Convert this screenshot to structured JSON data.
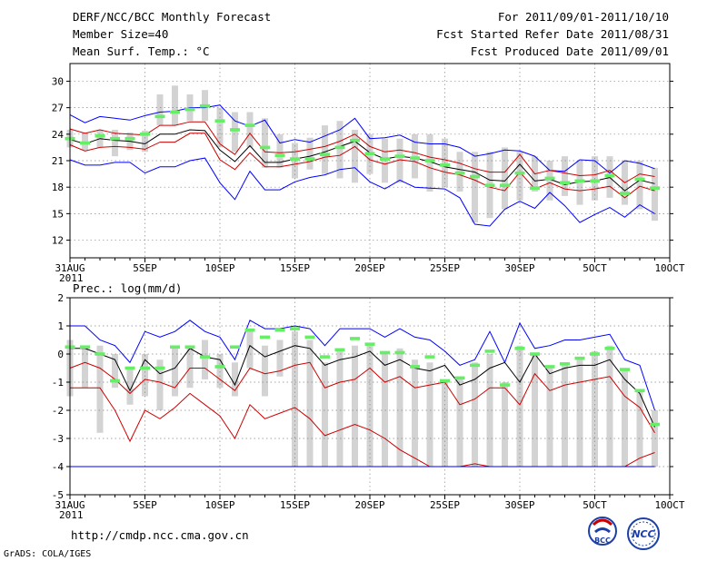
{
  "header": {
    "title": "DERF/NCC/BCC Monthly Forecast",
    "member_size": "Member Size=40",
    "for_period": "For 2011/09/01-2011/10/10",
    "fcst_started": "Fcst Started Refer Date 2011/08/31",
    "fcst_produced": "Fcst Produced Date 2011/09/01"
  },
  "footer": {
    "url": "http://cmdp.ncc.cma.gov.cn",
    "grads_credit": "GrADS: COLA/IGES",
    "logo_bcc_label": "BCC",
    "logo_ncc_label": "NCC"
  },
  "colors": {
    "envelope_max_min": "#0000ff",
    "spread": "#cc0000",
    "mean": "#000000",
    "boxes": "#d3d3d3",
    "member_marker": "#66ee66"
  },
  "chart_data": [
    {
      "type": "line",
      "title": "Mean Surf. Temp.: °C",
      "xlabel": "",
      "ylabel": "",
      "year_label": "2011",
      "x": [
        1,
        2,
        3,
        4,
        5,
        6,
        7,
        8,
        9,
        10,
        11,
        12,
        13,
        14,
        15,
        16,
        17,
        18,
        19,
        20,
        21,
        22,
        23,
        24,
        25,
        26,
        27,
        28,
        29,
        30,
        31,
        32,
        33,
        34,
        35,
        36,
        37,
        38,
        39,
        40
      ],
      "xtick_days": [
        1,
        6,
        11,
        16,
        21,
        26,
        31,
        36,
        41
      ],
      "xtick_labels": [
        "31AUG",
        "5SEP",
        "10SEP",
        "15SEP",
        "20SEP",
        "25SEP",
        "30SEP",
        "5OCT",
        "10OCT"
      ],
      "ylim": [
        10,
        32
      ],
      "yticks": [
        12,
        15,
        18,
        21,
        24,
        27,
        30
      ],
      "grid": true,
      "series": [
        {
          "name": "max",
          "values": [
            26.2,
            25.3,
            26.0,
            25.8,
            25.6,
            26.1,
            26.5,
            26.6,
            27.0,
            27.0,
            27.3,
            25.5,
            24.9,
            25.6,
            23.0,
            23.4,
            23.1,
            23.8,
            24.5,
            25.8,
            23.5,
            23.6,
            23.9,
            23.1,
            22.9,
            22.9,
            22.5,
            21.5,
            21.8,
            22.2,
            22.1,
            21.5,
            19.9,
            19.8,
            21.1,
            21.0,
            19.6,
            21.0,
            20.7,
            20.1
          ]
        },
        {
          "name": "upper",
          "values": [
            24.6,
            24.1,
            24.5,
            24.1,
            24.0,
            23.9,
            25.0,
            25.0,
            25.4,
            25.4,
            22.9,
            21.7,
            24.1,
            22.0,
            21.9,
            22.0,
            22.3,
            22.6,
            23.2,
            24.0,
            22.6,
            22.0,
            22.2,
            21.9,
            21.4,
            21.1,
            20.7,
            20.1,
            19.7,
            19.7,
            21.7,
            19.5,
            19.9,
            19.6,
            19.3,
            19.4,
            19.9,
            18.5,
            19.5,
            19.2
          ]
        },
        {
          "name": "mean",
          "values": [
            23.4,
            22.9,
            23.5,
            23.3,
            23.2,
            22.9,
            24.0,
            24.0,
            24.5,
            24.4,
            22.2,
            20.9,
            22.7,
            20.8,
            20.8,
            21.2,
            21.5,
            22.0,
            22.6,
            23.2,
            21.9,
            21.2,
            21.5,
            21.3,
            20.9,
            20.3,
            20.0,
            19.7,
            18.8,
            18.7,
            20.6,
            18.7,
            18.9,
            18.3,
            18.6,
            18.7,
            19.1,
            17.6,
            18.8,
            18.4
          ]
        },
        {
          "name": "lower",
          "values": [
            22.8,
            22.1,
            22.5,
            22.6,
            22.5,
            22.3,
            23.1,
            23.1,
            24.1,
            24.1,
            21.1,
            20.0,
            21.9,
            20.3,
            20.3,
            20.6,
            20.9,
            21.4,
            21.6,
            22.6,
            21.1,
            20.6,
            21.1,
            20.9,
            20.2,
            19.7,
            19.4,
            18.8,
            18.0,
            17.6,
            19.7,
            17.8,
            18.5,
            17.8,
            17.6,
            17.8,
            18.1,
            16.8,
            18.1,
            17.6
          ]
        },
        {
          "name": "min",
          "values": [
            21.1,
            20.5,
            20.5,
            20.8,
            20.8,
            19.6,
            20.3,
            20.3,
            21.0,
            21.3,
            18.5,
            16.6,
            19.8,
            17.7,
            17.7,
            18.6,
            19.1,
            19.4,
            20.0,
            20.2,
            18.6,
            17.8,
            18.8,
            18.0,
            17.9,
            17.8,
            16.8,
            13.8,
            13.6,
            15.5,
            16.4,
            15.6,
            17.4,
            15.9,
            14.0,
            14.9,
            15.7,
            14.6,
            16.0,
            15.0
          ]
        },
        {
          "name": "member",
          "values": [
            23.5,
            23.0,
            23.8,
            23.5,
            23.5,
            24.0,
            26.0,
            26.5,
            26.8,
            27.2,
            25.5,
            24.5,
            25.0,
            22.5,
            21.6,
            21.2,
            21.2,
            21.7,
            22.5,
            23.3,
            21.8,
            21.2,
            21.5,
            21.3,
            21.0,
            20.5,
            19.6,
            19.2,
            18.2,
            18.2,
            19.6,
            17.9,
            19.0,
            18.5,
            18.7,
            18.7,
            19.3,
            17.3,
            18.9,
            17.9
          ]
        }
      ],
      "boxes": [
        [
          22.5,
          24.5
        ],
        [
          22.2,
          24.2
        ],
        [
          22.5,
          24.5
        ],
        [
          21.5,
          24.5
        ],
        [
          22.2,
          24.2
        ],
        [
          22.0,
          24.4
        ],
        [
          25.0,
          28.5
        ],
        [
          25.0,
          29.5
        ],
        [
          25.5,
          28.5
        ],
        [
          25.5,
          29.0
        ],
        [
          22.5,
          27.0
        ],
        [
          22.0,
          26.5
        ],
        [
          22.5,
          26.5
        ],
        [
          20.2,
          25.8
        ],
        [
          20.2,
          24.0
        ],
        [
          19.0,
          23.0
        ],
        [
          20.0,
          23.6
        ],
        [
          19.5,
          25.0
        ],
        [
          19.0,
          25.5
        ],
        [
          18.5,
          24.5
        ],
        [
          19.5,
          24.0
        ],
        [
          18.5,
          23.5
        ],
        [
          18.5,
          23.5
        ],
        [
          19.0,
          24.0
        ],
        [
          17.5,
          24.0
        ],
        [
          18.0,
          23.5
        ],
        [
          17.5,
          22.0
        ],
        [
          14.0,
          22.0
        ],
        [
          14.5,
          22.0
        ],
        [
          15.5,
          22.5
        ],
        [
          16.5,
          22.0
        ],
        [
          17.5,
          21.5
        ],
        [
          16.5,
          21.0
        ],
        [
          17.0,
          21.5
        ],
        [
          16.0,
          21.0
        ],
        [
          16.5,
          21.5
        ],
        [
          16.8,
          21.5
        ],
        [
          16.0,
          21.0
        ],
        [
          15.5,
          21.0
        ],
        [
          14.2,
          20.2
        ]
      ]
    },
    {
      "type": "line",
      "title": "Prec.: log(mm/d)",
      "xlabel": "",
      "ylabel": "",
      "year_label": "2011",
      "x": [
        1,
        2,
        3,
        4,
        5,
        6,
        7,
        8,
        9,
        10,
        11,
        12,
        13,
        14,
        15,
        16,
        17,
        18,
        19,
        20,
        21,
        22,
        23,
        24,
        25,
        26,
        27,
        28,
        29,
        30,
        31,
        32,
        33,
        34,
        35,
        36,
        37,
        38,
        39,
        40
      ],
      "xtick_days": [
        1,
        6,
        11,
        16,
        21,
        26,
        31,
        36,
        41
      ],
      "xtick_labels": [
        "31AUG",
        "5SEP",
        "10SEP",
        "15SEP",
        "20SEP",
        "25SEP",
        "30SEP",
        "5OCT",
        "10OCT"
      ],
      "ylim": [
        -5,
        2
      ],
      "yticks": [
        -5,
        -4,
        -3,
        -2,
        -1,
        0,
        1,
        2
      ],
      "grid": true,
      "series": [
        {
          "name": "max",
          "values": [
            1.0,
            1.0,
            0.5,
            0.3,
            -0.3,
            0.8,
            0.6,
            0.8,
            1.2,
            0.8,
            0.6,
            -0.2,
            1.2,
            0.9,
            0.9,
            1.0,
            0.9,
            0.3,
            0.9,
            0.9,
            0.9,
            0.6,
            0.9,
            0.6,
            0.5,
            0.1,
            -0.4,
            -0.2,
            0.8,
            -0.3,
            1.1,
            0.2,
            0.3,
            0.5,
            0.5,
            0.6,
            0.7,
            -0.2,
            -0.4,
            -2.0
          ]
        },
        {
          "name": "mean",
          "values": [
            0.2,
            0.2,
            0.0,
            -0.2,
            -1.3,
            -0.2,
            -0.7,
            -0.5,
            0.2,
            -0.1,
            -0.2,
            -1.1,
            0.3,
            -0.1,
            0.1,
            0.3,
            0.2,
            -0.4,
            -0.2,
            -0.1,
            0.1,
            -0.4,
            -0.2,
            -0.5,
            -0.6,
            -0.4,
            -1.1,
            -0.9,
            -0.5,
            -0.3,
            -1.0,
            0.0,
            -0.7,
            -0.5,
            -0.4,
            -0.4,
            -0.2,
            -0.9,
            -1.4,
            -2.6
          ]
        },
        {
          "name": "lower",
          "values": [
            -0.5,
            -0.3,
            -0.5,
            -0.9,
            -1.4,
            -0.9,
            -1.0,
            -1.2,
            -0.5,
            -0.5,
            -0.9,
            -1.3,
            -0.5,
            -0.7,
            -0.6,
            -0.4,
            -0.3,
            -1.2,
            -1.0,
            -0.9,
            -0.5,
            -1.0,
            -0.8,
            -1.2,
            -1.1,
            -1.0,
            -1.8,
            -1.6,
            -1.2,
            -1.2,
            -1.8,
            -0.7,
            -1.3,
            -1.1,
            -1.0,
            -0.9,
            -0.8,
            -1.5,
            -1.9,
            -2.8
          ]
        },
        {
          "name": "min",
          "values": [
            -1.2,
            -1.2,
            -1.2,
            -2.0,
            -3.1,
            -2.0,
            -2.3,
            -1.9,
            -1.4,
            -1.8,
            -2.2,
            -3.0,
            -1.8,
            -2.3,
            -2.1,
            -1.9,
            -2.3,
            -2.9,
            -2.7,
            -2.5,
            -2.7,
            -3.0,
            -3.4,
            -3.7,
            -4.0,
            -4.0,
            -4.0,
            -3.9,
            -4.0,
            -4.0,
            -4.0,
            -4.0,
            -4.0,
            -4.0,
            -4.0,
            -4.0,
            -4.0,
            -4.0,
            -3.7,
            -3.5
          ]
        },
        {
          "name": "floor",
          "values": [
            -4,
            -4,
            -4,
            -4,
            -4,
            -4,
            -4,
            -4,
            -4,
            -4,
            -4,
            -4,
            -4,
            -4,
            -4,
            -4,
            -4,
            -4,
            -4,
            -4,
            -4,
            -4,
            -4,
            -4,
            -4,
            -4,
            -4,
            -4,
            -4,
            -4,
            -4,
            -4,
            -4,
            -4,
            -4,
            -4,
            -4,
            -4,
            -4,
            -4
          ]
        },
        {
          "name": "member",
          "values": [
            0.25,
            0.25,
            0.0,
            -0.95,
            -0.5,
            -0.5,
            -0.5,
            0.25,
            0.25,
            -0.1,
            -0.45,
            0.25,
            0.85,
            0.6,
            0.85,
            0.9,
            0.6,
            -0.1,
            0.15,
            0.55,
            0.35,
            0.05,
            0.05,
            -0.45,
            -0.1,
            -0.95,
            -0.85,
            -0.4,
            0.1,
            -1.1,
            0.2,
            0.0,
            -0.45,
            -0.35,
            -0.15,
            0.0,
            0.2,
            -0.55,
            -1.3,
            -2.5
          ]
        }
      ],
      "boxes": [
        [
          -1.5,
          0.5
        ],
        [
          -1.2,
          0.3
        ],
        [
          -2.8,
          0.3
        ],
        [
          -1.2,
          0.0
        ],
        [
          -1.8,
          -0.5
        ],
        [
          -1.5,
          0.0
        ],
        [
          -2.0,
          -0.2
        ],
        [
          -1.5,
          0.3
        ],
        [
          -1.2,
          0.3
        ],
        [
          -0.9,
          0.5
        ],
        [
          -1.2,
          0.0
        ],
        [
          -1.5,
          -0.3
        ],
        [
          -0.5,
          0.9
        ],
        [
          -1.5,
          0.3
        ],
        [
          -0.8,
          0.5
        ],
        [
          -4.0,
          0.8
        ],
        [
          -4.0,
          0.5
        ],
        [
          -4.0,
          -0.3
        ],
        [
          -4.0,
          0.2
        ],
        [
          -4.0,
          0.3
        ],
        [
          -4.0,
          0.3
        ],
        [
          -4.0,
          0.0
        ],
        [
          -4.0,
          0.2
        ],
        [
          -4.0,
          -0.2
        ],
        [
          -4.0,
          -0.3
        ],
        [
          -4.0,
          -1.0
        ],
        [
          -4.0,
          -0.8
        ],
        [
          -4.0,
          -0.3
        ],
        [
          -4.0,
          0.0
        ],
        [
          -4.0,
          -1.0
        ],
        [
          -4.0,
          0.3
        ],
        [
          -4.0,
          0.0
        ],
        [
          -4.0,
          -0.5
        ],
        [
          -4.0,
          -0.3
        ],
        [
          -4.0,
          -0.1
        ],
        [
          -4.0,
          0.1
        ],
        [
          -4.0,
          0.3
        ],
        [
          -4.0,
          -0.5
        ],
        [
          -4.0,
          -1.3
        ],
        [
          -4.0,
          -2.0
        ]
      ]
    }
  ]
}
